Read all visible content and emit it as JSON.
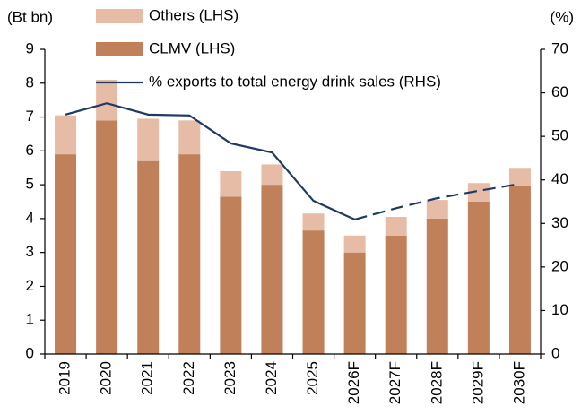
{
  "chart_data": {
    "type": "stacked_bar_line",
    "y_label": "(Bt bn)",
    "y2_label": "(%)",
    "categories": [
      "2019",
      "2020",
      "2021",
      "2022",
      "2023",
      "2024",
      "2025",
      "2026F",
      "2027F",
      "2028F",
      "2029F",
      "2030F"
    ],
    "series": [
      {
        "name": "CLMV (LHS)",
        "color": "#c0805a",
        "kind": "bar",
        "values": [
          5.9,
          6.9,
          5.7,
          5.9,
          4.65,
          5.0,
          3.65,
          3.0,
          3.5,
          4.0,
          4.5,
          4.95
        ]
      },
      {
        "name": "Others (LHS)",
        "color": "#e6bca6",
        "kind": "bar",
        "values": [
          1.15,
          1.2,
          1.25,
          1.0,
          0.75,
          0.6,
          0.5,
          0.5,
          0.55,
          0.55,
          0.55,
          0.55
        ]
      },
      {
        "name": "% exports to total energy drink sales (RHS)",
        "color": "#1f3864",
        "kind": "line",
        "axis": "y2",
        "dashed_from": "2026F",
        "values": [
          55,
          57.6,
          55,
          54.8,
          48.4,
          46.3,
          35.2,
          30.9,
          33.5,
          35.8,
          37.5,
          39.1
        ]
      }
    ],
    "ylim": [
      0,
      9
    ],
    "yticks": [
      0,
      1,
      2,
      3,
      4,
      5,
      6,
      7,
      8,
      9
    ],
    "y2lim": [
      0,
      70
    ],
    "y2ticks": [
      0,
      10,
      20,
      30,
      40,
      50,
      60,
      70
    ],
    "legend_order": [
      1,
      0,
      2
    ]
  }
}
